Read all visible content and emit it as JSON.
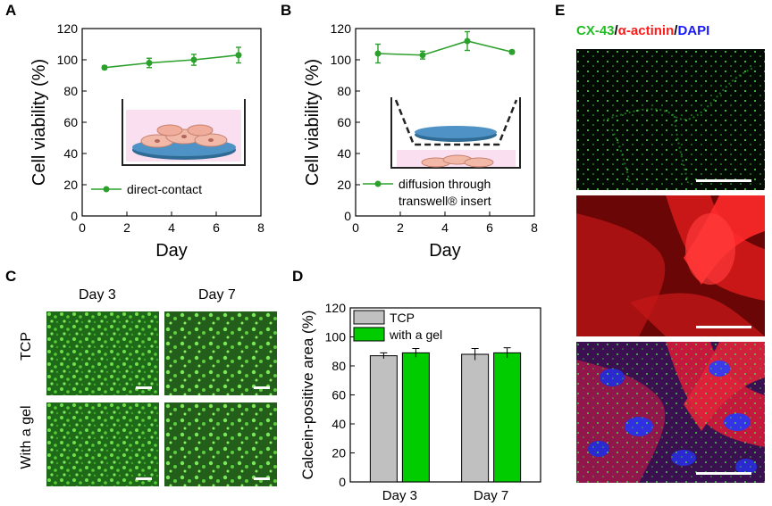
{
  "panels": {
    "a": "A",
    "b": "B",
    "c": "C",
    "d": "D",
    "e": "E"
  },
  "chart_data": [
    {
      "id": "A",
      "type": "line",
      "x": [
        1,
        3,
        5,
        7
      ],
      "series": [
        {
          "name": "direct-contact",
          "values": [
            95,
            98,
            100,
            103
          ],
          "errors": [
            1,
            3,
            3.5,
            5
          ],
          "color": "#2ca02c"
        }
      ],
      "xlabel": "Day",
      "ylabel": "Cell viability (%)",
      "xlim": [
        0,
        8
      ],
      "ylim": [
        0,
        120
      ],
      "xticks": [
        0,
        2,
        4,
        6,
        8
      ],
      "yticks": [
        0,
        20,
        40,
        60,
        80,
        100,
        120
      ],
      "legend": "bottom-left",
      "grid": false
    },
    {
      "id": "B",
      "type": "line",
      "x": [
        1,
        3,
        5,
        7
      ],
      "series": [
        {
          "name": "diffusion through transwell® insert",
          "values": [
            104,
            103,
            112,
            105
          ],
          "errors": [
            6,
            2.5,
            6,
            1
          ],
          "color": "#2ca02c"
        }
      ],
      "legend_lines": [
        "diffusion through",
        "transwell® insert"
      ],
      "xlabel": "Day",
      "ylabel": "Cell viability (%)",
      "xlim": [
        0,
        8
      ],
      "ylim": [
        0,
        120
      ],
      "xticks": [
        0,
        2,
        4,
        6,
        8
      ],
      "yticks": [
        0,
        20,
        40,
        60,
        80,
        100,
        120
      ],
      "legend": "bottom-right",
      "grid": false
    },
    {
      "id": "D",
      "type": "bar",
      "categories": [
        "Day 3",
        "Day 7"
      ],
      "series": [
        {
          "name": "TCP",
          "values": [
            87,
            88
          ],
          "errors": [
            2,
            4
          ],
          "color": "#c0c0c0"
        },
        {
          "name": "with a gel",
          "values": [
            89,
            89
          ],
          "errors": [
            3,
            3.5
          ],
          "color": "#00cc00"
        }
      ],
      "ylabel": "Calcein-positive area (%)",
      "ylim": [
        0,
        120
      ],
      "yticks": [
        0,
        20,
        40,
        60,
        80,
        100,
        120
      ],
      "legend": "top-left",
      "grid": false
    }
  ],
  "panel_c": {
    "col_labels": [
      "Day 3",
      "Day 7"
    ],
    "row_labels": [
      "TCP",
      "With a gel"
    ]
  },
  "panel_e": {
    "title_parts": [
      "CX-43",
      "/",
      "α-actinin",
      "/",
      "DAPI"
    ],
    "title_colors": [
      "#22bb22",
      "#000000",
      "#ff1a1a",
      "#000000",
      "#1a1aff"
    ]
  }
}
